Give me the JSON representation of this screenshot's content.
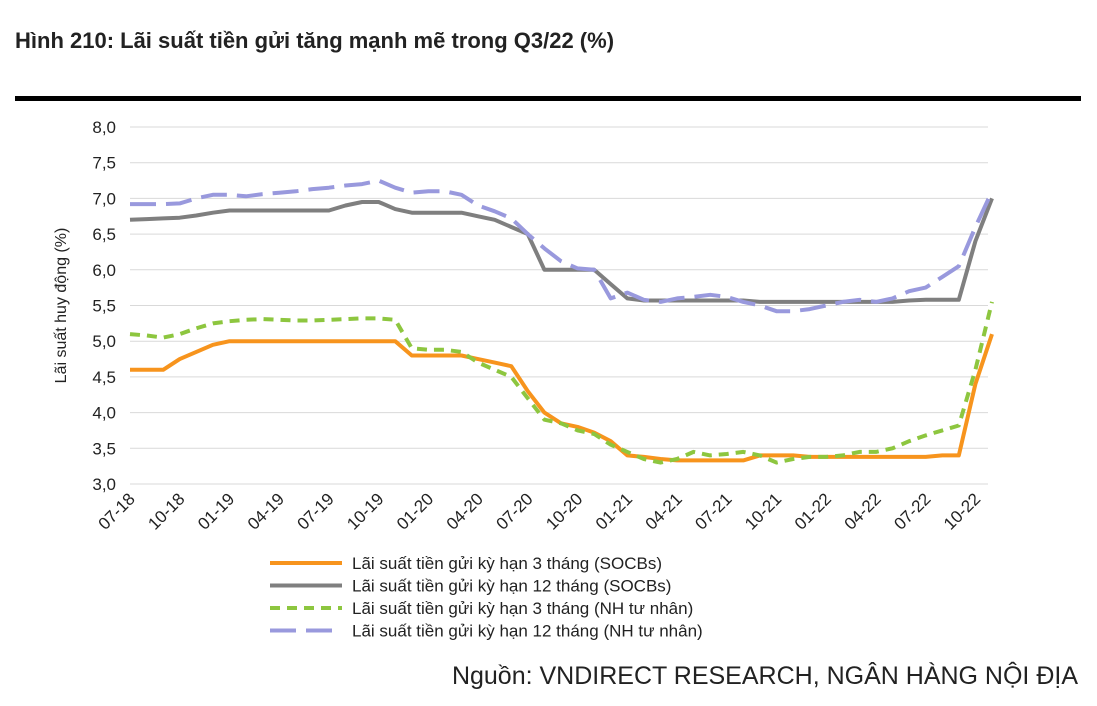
{
  "chart_data": {
    "type": "line",
    "title": "Hình 210: Lãi suất tiền gửi tăng mạnh mẽ trong Q3/22 (%)",
    "y_label": "Lãi suất huy động (%)",
    "source": "Nguồn: VNDIRECT RESEARCH, NGÂN HÀNG NỘI ĐỊA",
    "legend": "bottom",
    "grid": true,
    "ylim": [
      3,
      8
    ],
    "yticks": [
      {
        "value": 3,
        "label": "3,0"
      },
      {
        "value": 3.5,
        "label": "3,5"
      },
      {
        "value": 4,
        "label": "4,0"
      },
      {
        "value": 4.5,
        "label": "4,5"
      },
      {
        "value": 5,
        "label": "5,0"
      },
      {
        "value": 5.5,
        "label": "5,5"
      },
      {
        "value": 6,
        "label": "6,0"
      },
      {
        "value": 6.5,
        "label": "6,5"
      },
      {
        "value": 7,
        "label": "7,0"
      },
      {
        "value": 7.5,
        "label": "7,5"
      },
      {
        "value": 8,
        "label": "8,0"
      }
    ],
    "categories": [
      "07-18",
      null,
      null,
      "10-18",
      null,
      null,
      "01-19",
      null,
      null,
      "04-19",
      null,
      null,
      "07-19",
      null,
      null,
      "10-19",
      null,
      null,
      "01-20",
      null,
      null,
      "04-20",
      null,
      null,
      "07-20",
      null,
      null,
      "10-20",
      null,
      null,
      "01-21",
      null,
      null,
      "04-21",
      null,
      null,
      "07-21",
      null,
      null,
      "10-21",
      null,
      null,
      "01-22",
      null,
      null,
      "04-22",
      null,
      null,
      "07-22",
      null,
      null,
      "10-22",
      null
    ],
    "series": [
      {
        "name": "Lãi suất tiền gửi kỳ hạn 3 tháng (SOCBs)",
        "color": "#f7941d",
        "dash": "solid",
        "values": [
          4.6,
          4.6,
          4.6,
          4.75,
          4.85,
          4.95,
          5.0,
          5.0,
          5.0,
          5.0,
          5.0,
          5.0,
          5.0,
          5.0,
          5.0,
          5.0,
          5.0,
          4.8,
          4.8,
          4.8,
          4.8,
          4.75,
          4.7,
          4.65,
          4.3,
          4.0,
          3.85,
          3.8,
          3.72,
          3.6,
          3.4,
          3.38,
          3.35,
          3.33,
          3.33,
          3.33,
          3.33,
          3.33,
          3.4,
          3.4,
          3.4,
          3.38,
          3.38,
          3.38,
          3.38,
          3.38,
          3.38,
          3.38,
          3.38,
          3.4,
          3.4,
          4.4,
          5.1
        ]
      },
      {
        "name": "Lãi suất tiền gửi kỳ hạn 12 tháng (SOCBs)",
        "color": "#7f7f7f",
        "dash": "solid",
        "values": [
          6.7,
          6.71,
          6.72,
          6.73,
          6.76,
          6.8,
          6.83,
          6.83,
          6.83,
          6.83,
          6.83,
          6.83,
          6.83,
          6.9,
          6.95,
          6.95,
          6.85,
          6.8,
          6.8,
          6.8,
          6.8,
          6.75,
          6.7,
          6.6,
          6.5,
          6.0,
          6.0,
          6.0,
          6.0,
          5.8,
          5.6,
          5.57,
          5.57,
          5.57,
          5.57,
          5.57,
          5.57,
          5.57,
          5.55,
          5.55,
          5.55,
          5.55,
          5.55,
          5.55,
          5.55,
          5.55,
          5.55,
          5.57,
          5.58,
          5.58,
          5.58,
          6.4,
          7.0
        ]
      },
      {
        "name": "Lãi suất tiền gửi kỳ hạn 3 tháng (NH tư nhân)",
        "color": "#8dc63f",
        "dash": "dashed",
        "values": [
          5.1,
          5.08,
          5.05,
          5.1,
          5.18,
          5.25,
          5.28,
          5.3,
          5.31,
          5.3,
          5.29,
          5.29,
          5.3,
          5.31,
          5.32,
          5.32,
          5.3,
          4.9,
          4.88,
          4.88,
          4.85,
          4.7,
          4.6,
          4.5,
          4.2,
          3.9,
          3.85,
          3.75,
          3.7,
          3.55,
          3.45,
          3.35,
          3.3,
          3.35,
          3.45,
          3.4,
          3.42,
          3.45,
          3.4,
          3.3,
          3.35,
          3.38,
          3.38,
          3.4,
          3.45,
          3.45,
          3.5,
          3.6,
          3.68,
          3.75,
          3.82,
          4.6,
          5.55
        ]
      },
      {
        "name": "Lãi suất tiền gửi kỳ hạn 12 tháng (NH tư nhân)",
        "color": "#9999dd",
        "dash": "longdash",
        "values": [
          6.92,
          6.92,
          6.92,
          6.93,
          7.0,
          7.05,
          7.05,
          7.03,
          7.06,
          7.08,
          7.1,
          7.13,
          7.15,
          7.18,
          7.2,
          7.25,
          7.15,
          7.08,
          7.1,
          7.1,
          7.05,
          6.9,
          6.82,
          6.72,
          6.5,
          6.3,
          6.12,
          6.02,
          6.0,
          5.6,
          5.68,
          5.58,
          5.55,
          5.6,
          5.62,
          5.65,
          5.62,
          5.55,
          5.5,
          5.42,
          5.42,
          5.45,
          5.5,
          5.55,
          5.58,
          5.55,
          5.6,
          5.7,
          5.75,
          5.9,
          6.05,
          6.6,
          7.1
        ]
      }
    ]
  }
}
